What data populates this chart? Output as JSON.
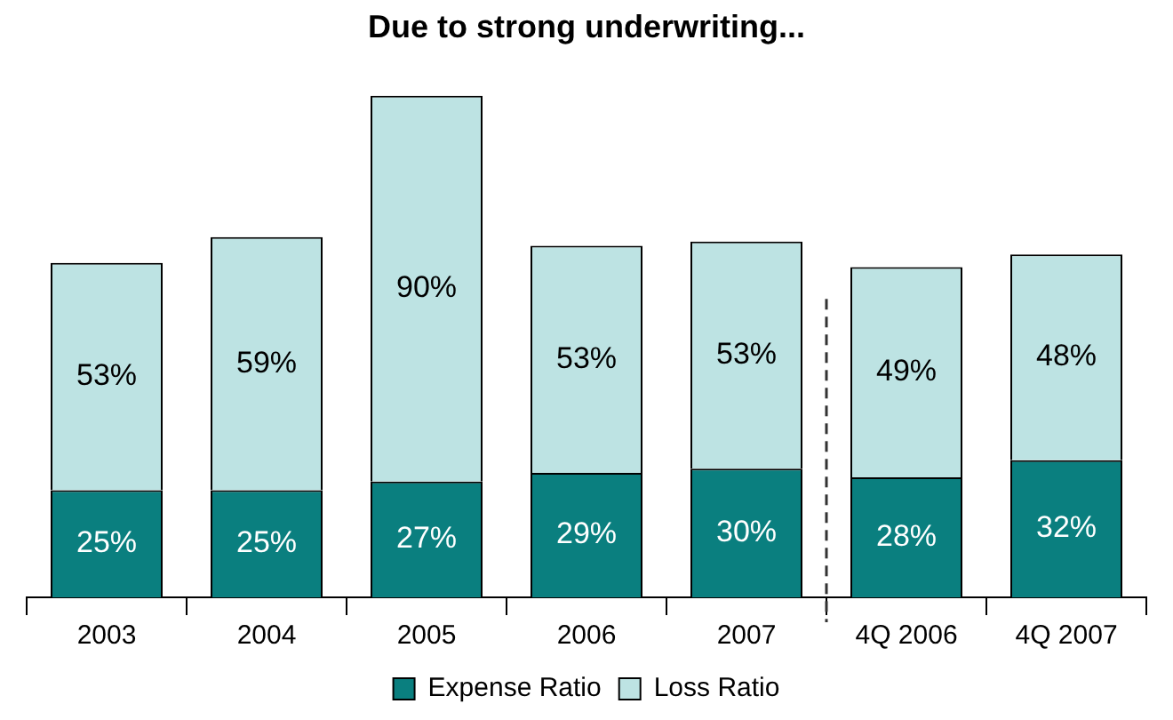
{
  "chart_data": {
    "type": "bar",
    "title": "Due to strong underwriting...",
    "stacked": true,
    "legend": "bottom",
    "grid": false,
    "categories": [
      "2003",
      "2004",
      "2005",
      "2006",
      "2007",
      "4Q 2006",
      "4Q 2007"
    ],
    "series": [
      {
        "name": "Expense Ratio",
        "color": "#0a7f7f",
        "values": [
          25,
          25,
          27,
          29,
          30,
          28,
          32
        ],
        "value_labels": [
          "25%",
          "25%",
          "27%",
          "29%",
          "30%",
          "28%",
          "32%"
        ]
      },
      {
        "name": "Loss Ratio",
        "color": "#bde3e3",
        "values": [
          53,
          59,
          90,
          53,
          53,
          49,
          48
        ],
        "value_labels": [
          "53%",
          "59%",
          "90%",
          "53%",
          "53%",
          "49%",
          "48%"
        ]
      }
    ]
  }
}
